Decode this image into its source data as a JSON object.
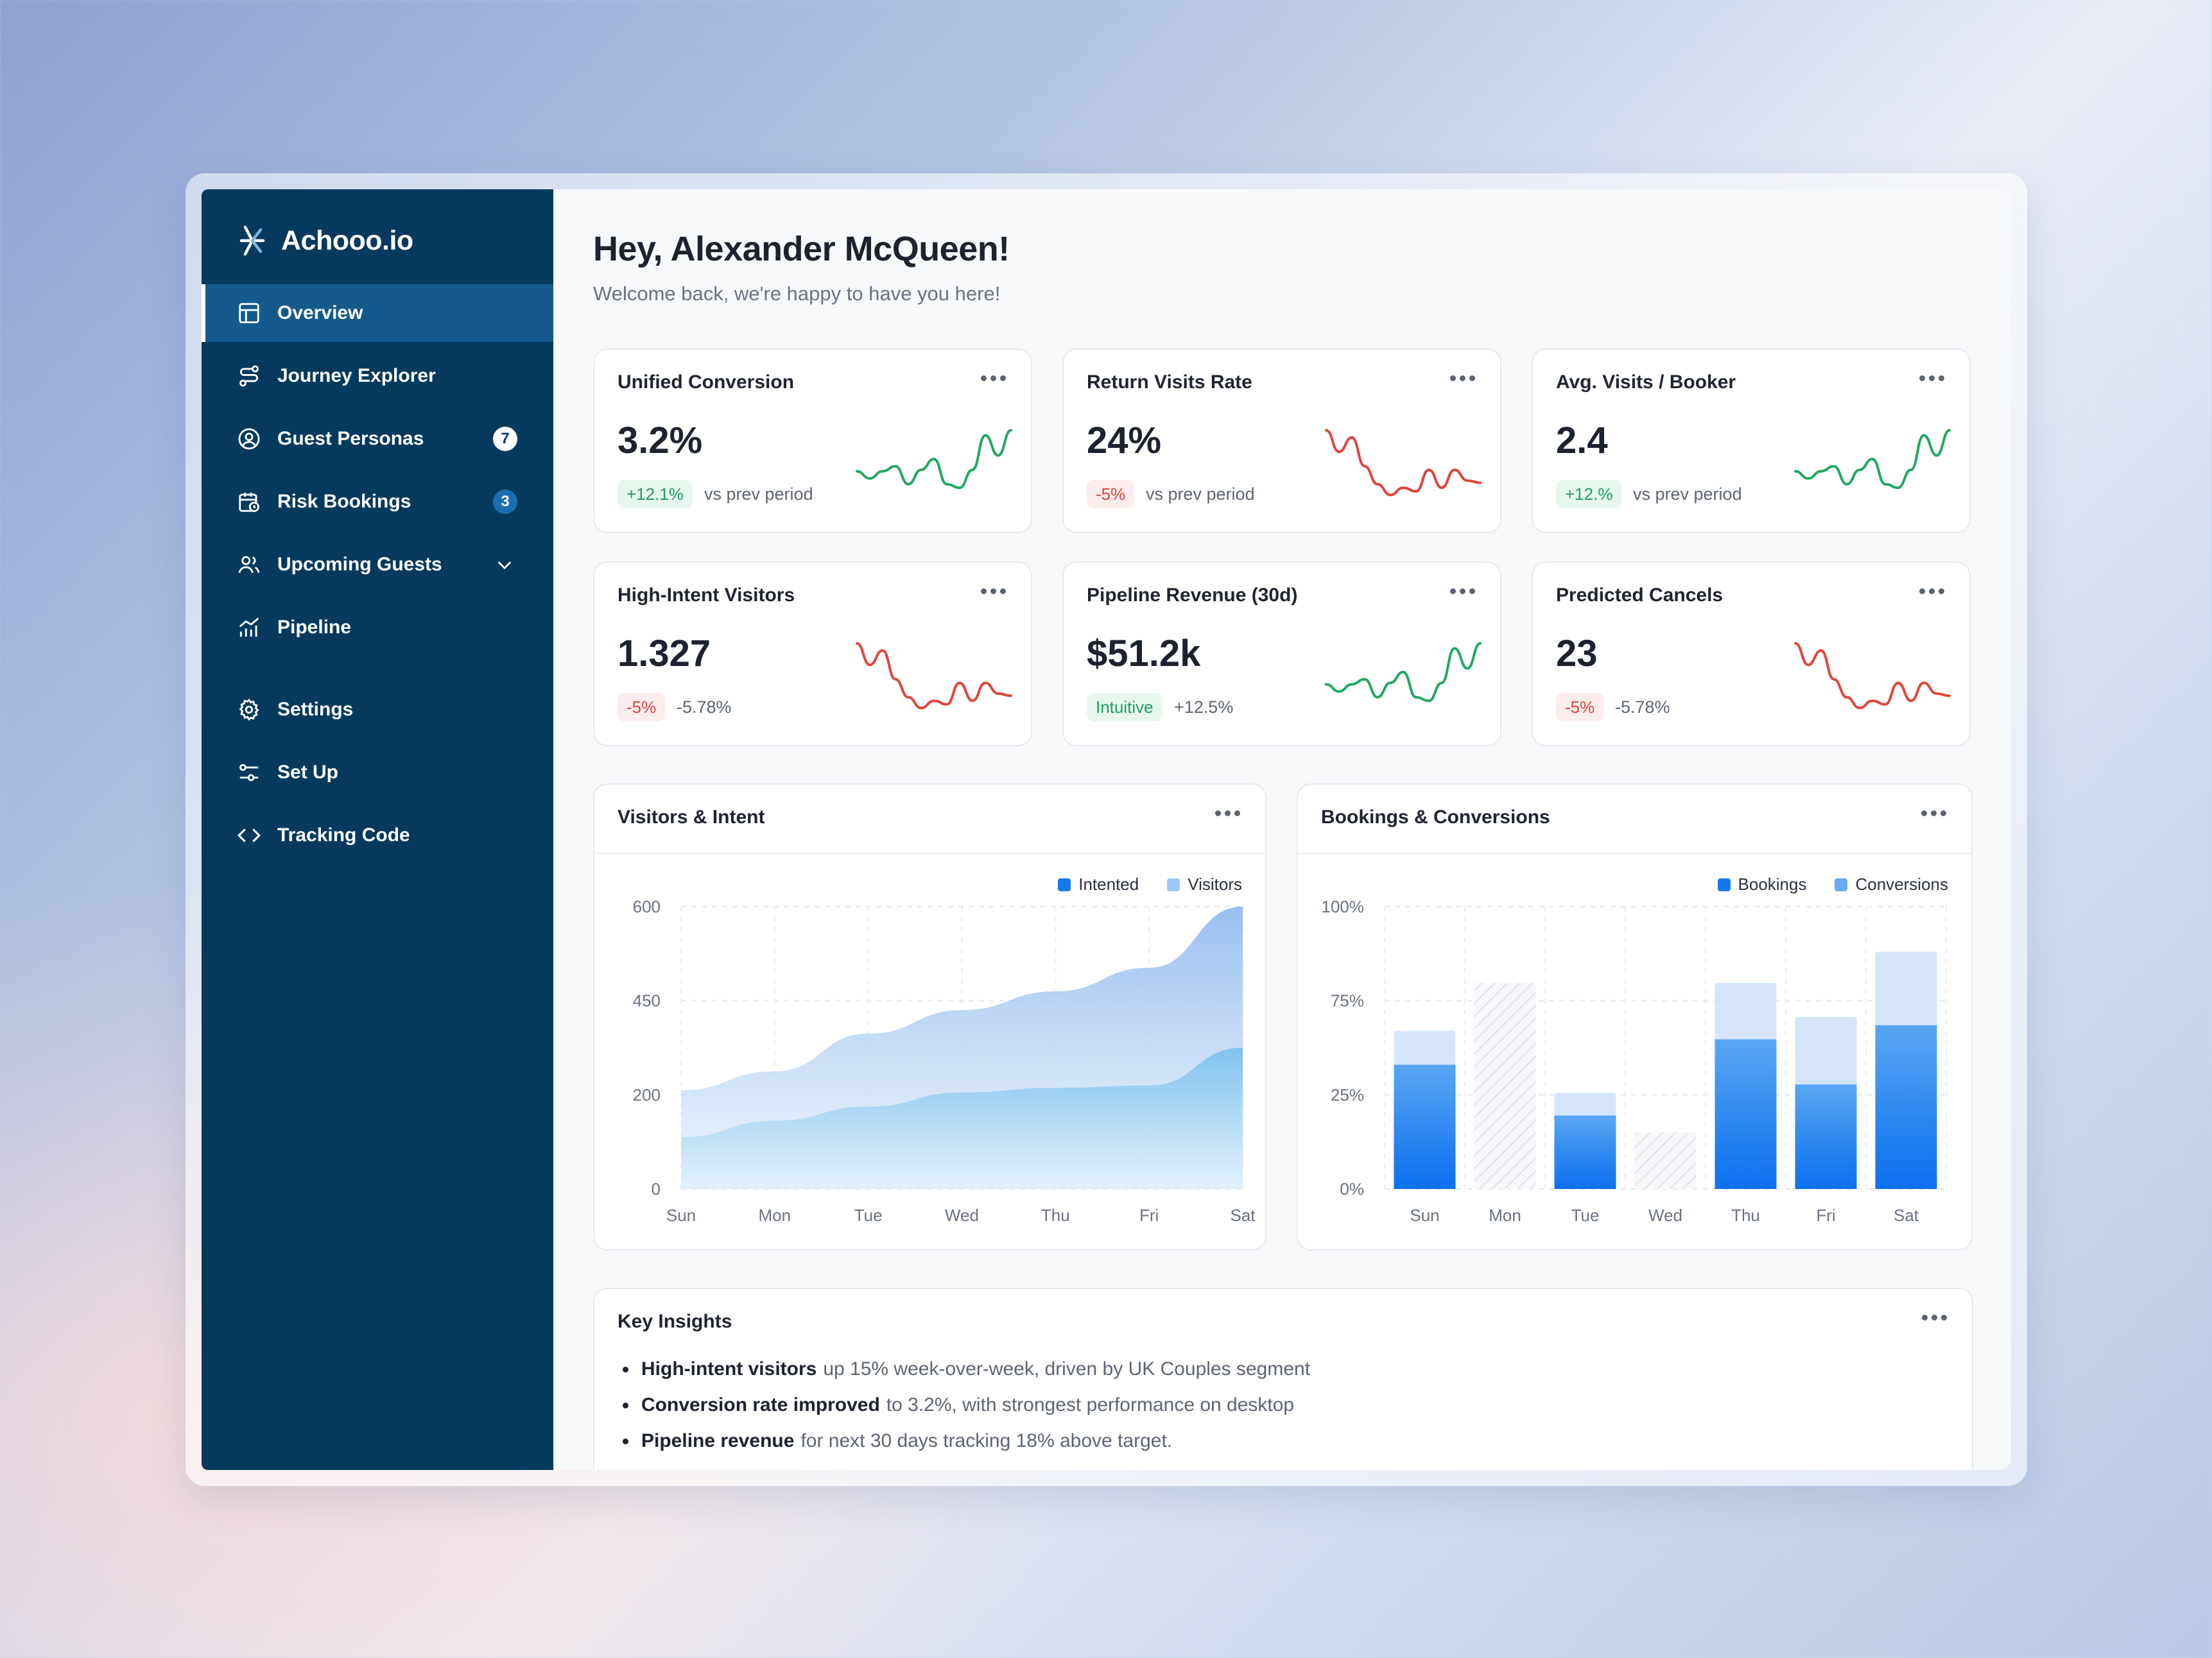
{
  "brand": {
    "name": "Achooo.io"
  },
  "sidebar": {
    "items": [
      {
        "label": "Overview",
        "icon": "layout-icon",
        "active": true
      },
      {
        "label": "Journey Explorer",
        "icon": "route-icon"
      },
      {
        "label": "Guest Personas",
        "icon": "user-circle-icon",
        "badge": "7"
      },
      {
        "label": "Risk Bookings",
        "icon": "calendar-clock-icon",
        "badge": "3"
      },
      {
        "label": "Upcoming Guests",
        "icon": "users-icon"
      },
      {
        "label": "Pipeline",
        "icon": "chart-bars-icon"
      }
    ],
    "secondary": [
      {
        "label": "Settings",
        "icon": "gear-icon"
      },
      {
        "label": "Set Up",
        "icon": "sliders-icon"
      },
      {
        "label": "Tracking Code",
        "icon": "code-icon"
      }
    ]
  },
  "header": {
    "greeting": "Hey, Alexander McQueen!",
    "subtitle": "Welcome back, we're happy to have you here!"
  },
  "kpis": [
    {
      "title": "Unified Conversion",
      "value": "3.2%",
      "delta": "+12.1%",
      "trend": "up",
      "note": "vs prev period",
      "color": "#22a861"
    },
    {
      "title": "Return Visits Rate",
      "value": "24%",
      "delta": "-5%",
      "trend": "down",
      "note": "vs prev period",
      "color": "#e0453a"
    },
    {
      "title": "Avg. Visits / Booker",
      "value": "2.4",
      "delta": "+12.%",
      "trend": "up",
      "note": "vs prev period",
      "color": "#22a861"
    },
    {
      "title": "High-Intent Visitors",
      "value": "1.327",
      "delta": "-5%",
      "trend": "down",
      "note": "-5.78%",
      "color": "#e0453a"
    },
    {
      "title": "Pipeline Revenue (30d)",
      "value": "$51.2k",
      "delta": "Intuitive",
      "trend": "up",
      "note": "+12.5%",
      "color": "#22a861"
    },
    {
      "title": "Predicted Cancels",
      "value": "23",
      "delta": "-5%",
      "trend": "down",
      "note": "-5.78%",
      "color": "#e0453a"
    }
  ],
  "charts": {
    "visitors": {
      "title": "Visitors & Intent",
      "legend": [
        "Intented",
        "Visitors"
      ]
    },
    "bookings": {
      "title": "Bookings & Conversions",
      "legend": [
        "Bookings",
        "Conversions"
      ]
    }
  },
  "chart_data": [
    {
      "type": "area",
      "title": "Visitors & Intent",
      "categories": [
        "Sun",
        "Mon",
        "Tue",
        "Wed",
        "Thu",
        "Fri",
        "Sat"
      ],
      "yticks": [
        "600",
        "450",
        "200",
        "0"
      ],
      "ylim": [
        0,
        600
      ],
      "series": [
        {
          "name": "Visitors",
          "values": [
            210,
            250,
            330,
            380,
            420,
            470,
            600
          ],
          "color": "#b9d3f4"
        },
        {
          "name": "Intented",
          "values": [
            110,
            145,
            175,
            205,
            215,
            220,
            300
          ],
          "color": "#8cc8f0"
        }
      ],
      "legend_position": "top-right",
      "grid": true
    },
    {
      "type": "bar",
      "title": "Bookings & Conversions",
      "categories": [
        "Sun",
        "Mon",
        "Tue",
        "Wed",
        "Thu",
        "Fri",
        "Sat"
      ],
      "yticks": [
        "100%",
        "75%",
        "25%",
        "0%"
      ],
      "ylim": [
        0,
        100
      ],
      "series": [
        {
          "name": "Bookings",
          "values": [
            44,
            null,
            26,
            null,
            53,
            37,
            58
          ],
          "color": "#1479ea"
        },
        {
          "name": "Conversions",
          "values": [
            56,
            73,
            34,
            20,
            73,
            61,
            84
          ],
          "color": "#d4e5fb"
        }
      ],
      "hatched_empty": [
        false,
        true,
        false,
        true,
        false,
        false,
        false
      ],
      "legend_position": "top-right",
      "grid": true
    }
  ],
  "insights": {
    "title": "Key Insights",
    "items": [
      {
        "bold": "High-intent visitors",
        "text": "up 15% week-over-week, driven by UK Couples segment"
      },
      {
        "bold": "Conversion rate improved",
        "text": "to 3.2%, with strongest performance on desktop"
      },
      {
        "bold": "Pipeline revenue",
        "text": "for next 30 days tracking 18% above target."
      }
    ]
  }
}
